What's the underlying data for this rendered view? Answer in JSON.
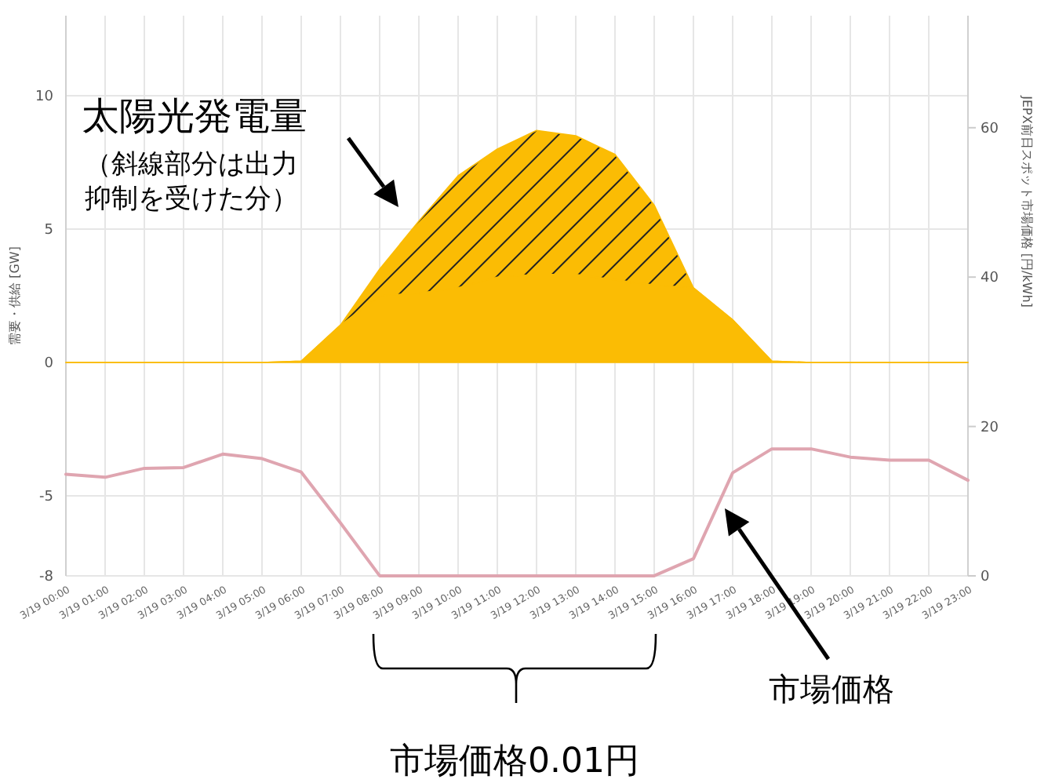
{
  "chart_data": {
    "type": "area",
    "stacked": true,
    "categories": [
      "3/19 00:00",
      "3/19 01:00",
      "3/19 02:00",
      "3/19 03:00",
      "3/19 04:00",
      "3/19 05:00",
      "3/19 06:00",
      "3/19 07:00",
      "3/19 08:00",
      "3/19 09:00",
      "3/19 10:00",
      "3/19 11:00",
      "3/19 12:00",
      "3/19 13:00",
      "3/19 14:00",
      "3/19 15:00",
      "3/19 16:00",
      "3/19 17:00",
      "3/19 18:00",
      "3/19 19:00",
      "3/19 20:00",
      "3/19 21:00",
      "3/19 22:00",
      "3/19 23:00"
    ],
    "series": [
      {
        "color": "#fbbc04",
        "values": [
          0,
          0,
          0,
          0,
          0,
          0,
          0.05,
          1.4,
          2.5,
          2.6,
          2.8,
          3.2,
          3.3,
          3.3,
          3.1,
          2.9,
          2.8,
          1.6,
          0.05,
          0,
          0,
          0,
          0,
          0
        ]
      },
      {
        "color": "#fbbc04",
        "values": [
          0,
          0,
          0,
          0,
          0,
          0,
          0,
          0,
          1.0,
          2.7,
          4.2,
          4.8,
          5.4,
          5.2,
          4.7,
          3.0,
          0,
          0,
          0,
          0,
          0,
          0,
          0,
          0
        ]
      },
      {
        "type": "line",
        "axis": "y2",
        "color": "#dfa5b0",
        "values": [
          13.6,
          13.2,
          14.4,
          14.5,
          16.3,
          15.7,
          13.9,
          7.1,
          0.01,
          0.01,
          0.01,
          0.01,
          0.01,
          0.01,
          0.01,
          0.01,
          2.3,
          13.8,
          17.0,
          17.0,
          15.9,
          15.5,
          15.5,
          12.8
        ]
      }
    ],
    "ylabel": "需要・供給 [GW]",
    "y2label": "JEPX前日スポット市場価格 [円/kWh]",
    "ylim": [
      -8,
      13
    ],
    "yticks": [
      -8,
      -5,
      0,
      5,
      10
    ],
    "y2lim": [
      0,
      75
    ],
    "y2ticks": [
      0,
      20,
      40,
      60
    ],
    "grid": true,
    "annotations": [
      "太陽光発電量",
      "（斜線部分は出力抑制を受けた分）",
      "市場価格",
      "市場価格0.01円"
    ]
  }
}
